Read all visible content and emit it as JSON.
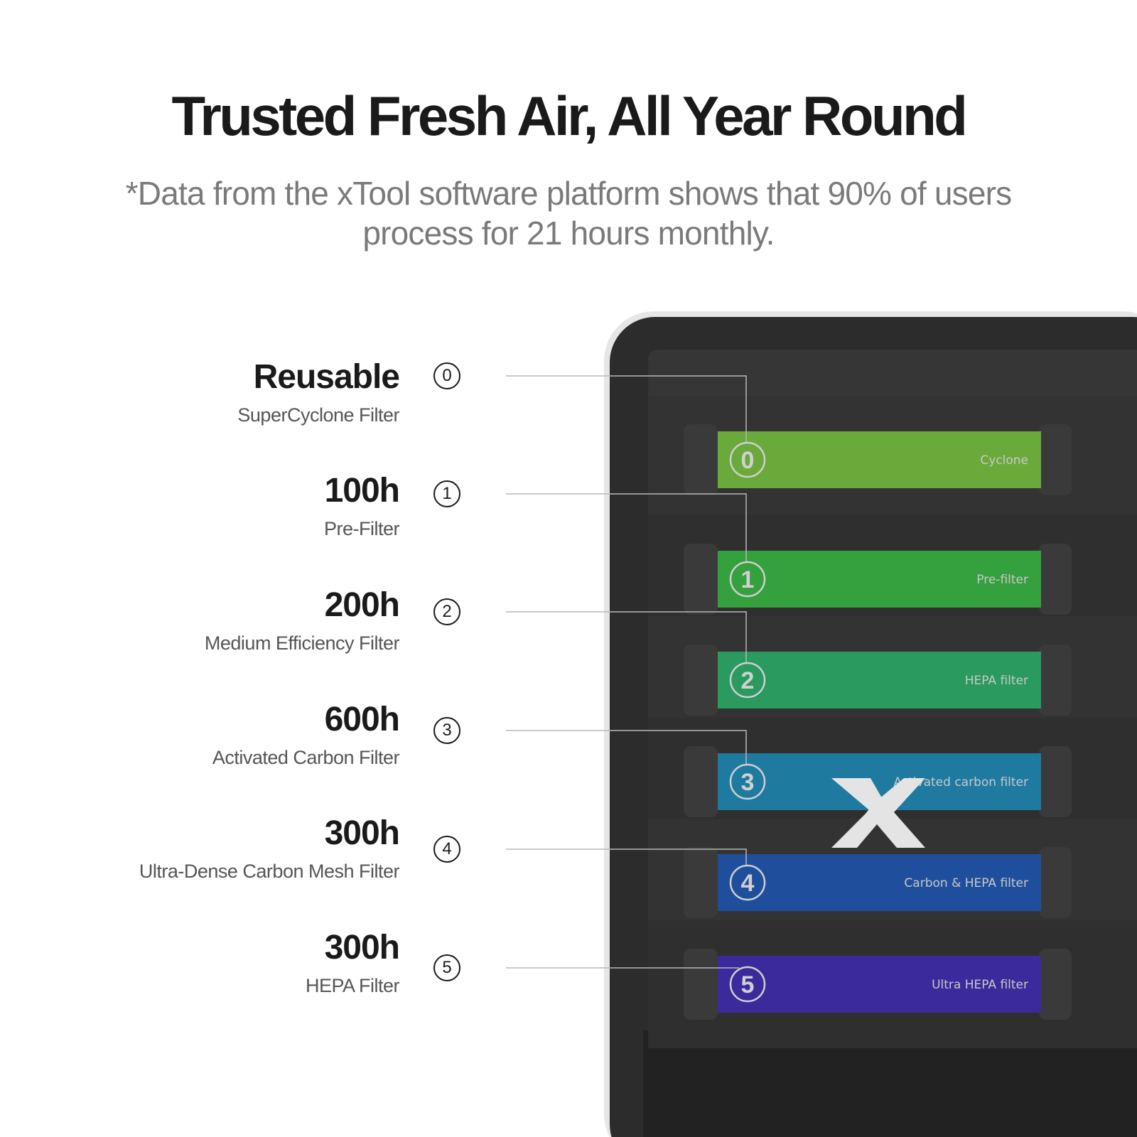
{
  "header": {
    "title": "Trusted Fresh Air, All Year Round",
    "subtitle_line1": "*Data from the xTool software platform shows that 90% of users",
    "subtitle_line2": "process for 21 hours monthly."
  },
  "filters": [
    {
      "number": "0",
      "lifespan": "Reusable",
      "name": "SuperCyclone Filter",
      "tray_label": "Cyclone",
      "color": "#6aaa3a"
    },
    {
      "number": "1",
      "lifespan": "100h",
      "name": "Pre-Filter",
      "tray_label": "Pre-filter",
      "color": "#35a03e"
    },
    {
      "number": "2",
      "lifespan": "200h",
      "name": "Medium Efficiency Filter",
      "tray_label": "HEPA filter",
      "color": "#2a9a5e"
    },
    {
      "number": "3",
      "lifespan": "600h",
      "name": "Activated Carbon Filter",
      "tray_label": "Activated carbon filter",
      "color": "#1f7aa0"
    },
    {
      "number": "4",
      "lifespan": "300h",
      "name": "Ultra-Dense Carbon Mesh Filter",
      "tray_label": "Carbon & HEPA filter",
      "color": "#1f4f9c"
    },
    {
      "number": "5",
      "lifespan": "300h",
      "name": "HEPA Filter",
      "tray_label": "Ultra HEPA filter",
      "color": "#3b2a9c"
    }
  ],
  "device": {
    "logo": "X",
    "body_color": "#2c2c2c"
  }
}
